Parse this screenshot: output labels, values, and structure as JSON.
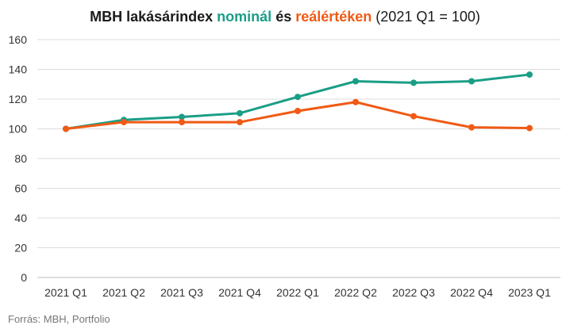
{
  "title": {
    "prefix": "MBH lakásárindex ",
    "nominal": "nominál",
    "connector": " és ",
    "real": "reálértéken",
    "base": " (2021 Q1 = 100)"
  },
  "source": "Forrás: MBH, Portfolio",
  "colors": {
    "nominal": "#1a9e86",
    "real": "#f05a14",
    "grid": "#dddddd",
    "axis": "#bbbbbb"
  },
  "chart_data": {
    "type": "line",
    "title": "MBH lakásárindex nominál és reálértéken (2021 Q1 = 100)",
    "categories": [
      "2021 Q1",
      "2021 Q2",
      "2021 Q3",
      "2021 Q4",
      "2022 Q1",
      "2022 Q2",
      "2022 Q3",
      "2022 Q4",
      "2023 Q1"
    ],
    "series": [
      {
        "key": "nominal",
        "values": [
          100,
          106,
          108,
          110.5,
          121.5,
          132,
          131,
          132,
          136.5
        ]
      },
      {
        "key": "real",
        "values": [
          100,
          104.5,
          104.5,
          104.5,
          112,
          118,
          108.5,
          101,
          100.5
        ]
      }
    ],
    "yticks": [
      0,
      20,
      40,
      60,
      80,
      100,
      120,
      140,
      160
    ],
    "ylim": [
      0,
      160
    ],
    "grid": true,
    "legend": "in-title"
  }
}
